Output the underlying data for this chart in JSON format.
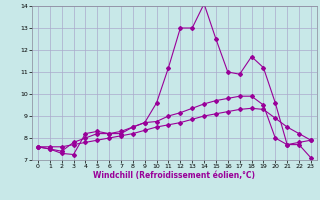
{
  "title": "",
  "xlabel": "Windchill (Refroidissement éolien,°C)",
  "ylabel": "",
  "bg_color": "#c8e8e8",
  "line_color": "#990099",
  "grid_color": "#aaaacc",
  "spine_color": "#888899",
  "xlim": [
    -0.5,
    23.5
  ],
  "ylim": [
    7,
    14
  ],
  "xticks": [
    0,
    1,
    2,
    3,
    4,
    5,
    6,
    7,
    8,
    9,
    10,
    11,
    12,
    13,
    14,
    15,
    16,
    17,
    18,
    19,
    20,
    21,
    22,
    23
  ],
  "yticks": [
    7,
    8,
    9,
    10,
    11,
    12,
    13,
    14
  ],
  "line1_x": [
    0,
    1,
    2,
    3,
    4,
    5,
    6,
    7,
    8,
    9,
    10,
    11,
    12,
    13,
    14,
    15,
    16,
    17,
    18,
    19,
    20,
    21,
    22,
    23
  ],
  "line1_y": [
    7.6,
    7.5,
    7.3,
    7.25,
    8.2,
    8.3,
    8.2,
    8.2,
    8.5,
    8.7,
    9.6,
    11.2,
    13.0,
    13.0,
    14.1,
    12.5,
    11.0,
    10.9,
    11.7,
    11.2,
    9.6,
    7.7,
    7.7,
    7.1
  ],
  "line2_x": [
    0,
    1,
    2,
    3,
    4,
    5,
    6,
    7,
    8,
    9,
    10,
    11,
    12,
    13,
    14,
    15,
    16,
    17,
    18,
    19,
    20,
    21,
    22,
    23
  ],
  "line2_y": [
    7.6,
    7.5,
    7.4,
    7.8,
    8.0,
    8.2,
    8.2,
    8.3,
    8.5,
    8.7,
    8.75,
    9.0,
    9.15,
    9.35,
    9.55,
    9.7,
    9.8,
    9.9,
    9.9,
    9.5,
    8.0,
    7.7,
    7.8,
    7.9
  ],
  "line3_x": [
    0,
    1,
    2,
    3,
    4,
    5,
    6,
    7,
    8,
    9,
    10,
    11,
    12,
    13,
    14,
    15,
    16,
    17,
    18,
    19,
    20,
    21,
    22,
    23
  ],
  "line3_y": [
    7.6,
    7.6,
    7.6,
    7.7,
    7.8,
    7.9,
    8.0,
    8.1,
    8.2,
    8.35,
    8.5,
    8.6,
    8.7,
    8.85,
    9.0,
    9.1,
    9.2,
    9.3,
    9.35,
    9.3,
    8.9,
    8.5,
    8.2,
    7.9
  ],
  "marker_size": 2.0,
  "linewidth": 0.8,
  "xlabel_fontsize": 5.5,
  "tick_fontsize": 4.5
}
